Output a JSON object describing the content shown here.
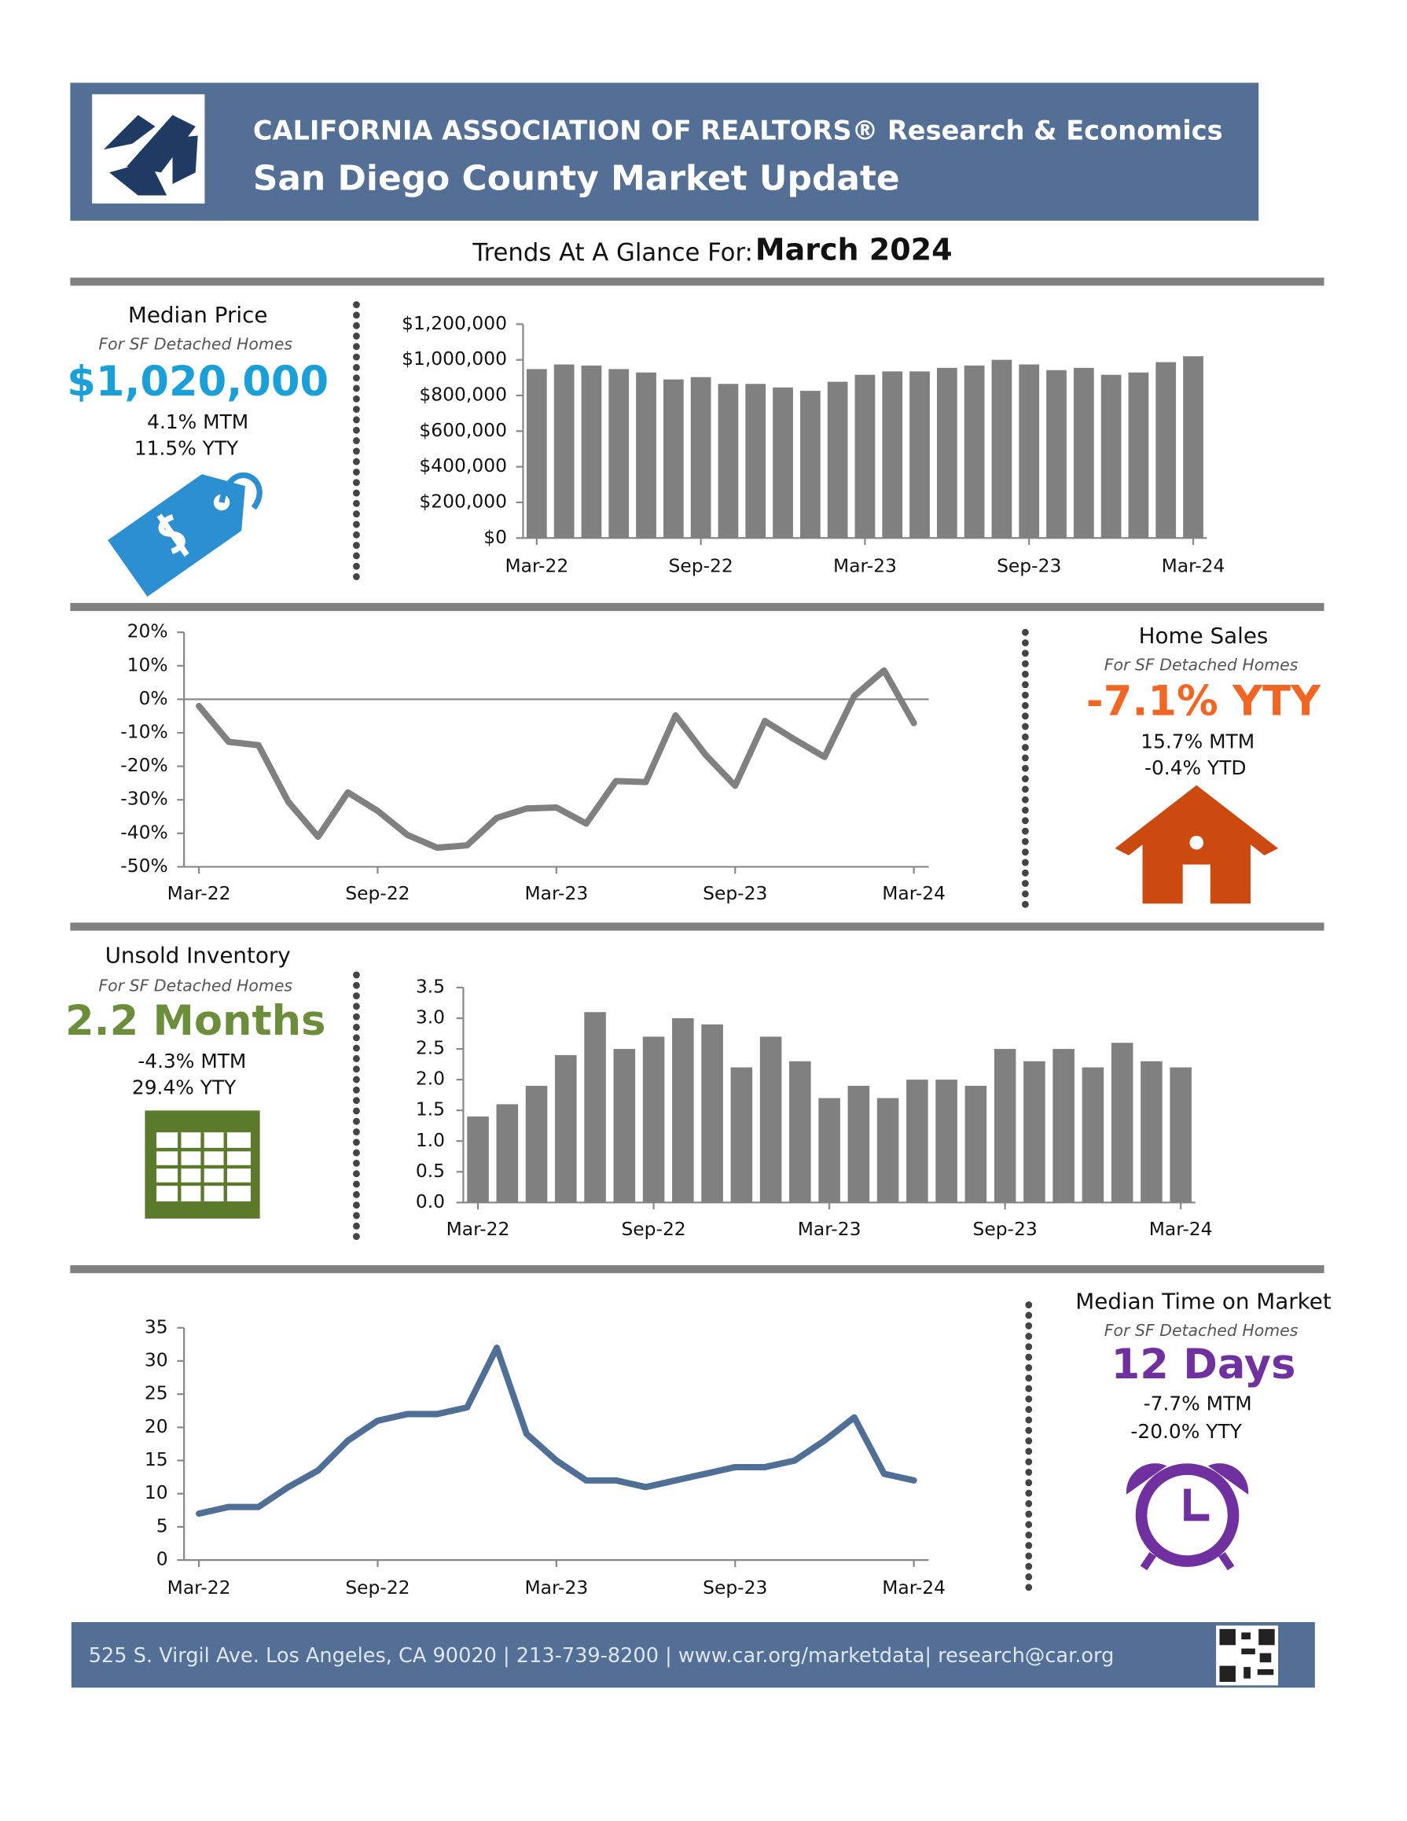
{
  "header": {
    "org": "CALIFORNIA ASSOCIATION OF REALTORS® Research & Economics",
    "title": "San Diego County Market Update"
  },
  "trends": {
    "label": "Trends At A Glance For:",
    "period": "March 2024"
  },
  "panels": [
    {
      "title": "Median Price",
      "subtitle": "For SF Detached Homes",
      "headline": "$1,020,000",
      "lines": [
        "4.1% MTM",
        "11.5% YTY"
      ]
    },
    {
      "title": "Home Sales",
      "subtitle": "For SF Detached Homes",
      "headline": "-7.1% YTY",
      "lines": [
        "15.7% MTM",
        "-0.4% YTD"
      ]
    },
    {
      "title": "Unsold Inventory",
      "subtitle": "For SF Detached Homes",
      "headline": "2.2 Months",
      "lines": [
        "-4.3% MTM",
        "29.4% YTY"
      ]
    },
    {
      "title": "Median Time on Market",
      "subtitle": "For SF Detached Homes",
      "headline": "12 Days",
      "lines": [
        "-7.7% MTM",
        "-20.0% YTY"
      ]
    }
  ],
  "chart_data": [
    {
      "type": "bar",
      "color": "#808080",
      "categories": [
        "Mar-22",
        null,
        null,
        null,
        null,
        null,
        "Sep-22",
        null,
        null,
        null,
        null,
        null,
        "Mar-23",
        null,
        null,
        null,
        null,
        null,
        "Sep-23",
        null,
        null,
        null,
        null,
        null,
        "Mar-24"
      ],
      "values": [
        948000,
        974000,
        968000,
        948000,
        929000,
        890000,
        903000,
        865000,
        865000,
        845000,
        826000,
        877000,
        916000,
        935000,
        935000,
        955000,
        968000,
        1000000,
        974000,
        942000,
        955000,
        916000,
        929000,
        987000,
        1020000
      ],
      "ylim": [
        0,
        1200000
      ],
      "yticks": [
        {
          "value": 0,
          "label": "$0"
        },
        {
          "value": 200000,
          "label": "$200,000"
        },
        {
          "value": 400000,
          "label": "$400,000"
        },
        {
          "value": 600000,
          "label": "$600,000"
        },
        {
          "value": 800000,
          "label": "$800,000"
        },
        {
          "value": 1000000,
          "label": "$1,000,000"
        },
        {
          "value": 1200000,
          "label": "$1,200,000"
        }
      ]
    },
    {
      "type": "line",
      "color": "#808080",
      "categories": [
        "Mar-22",
        null,
        null,
        null,
        null,
        null,
        "Sep-22",
        null,
        null,
        null,
        null,
        null,
        "Mar-23",
        null,
        null,
        null,
        null,
        null,
        "Sep-23",
        null,
        null,
        null,
        null,
        null,
        "Mar-24"
      ],
      "values": [
        -2,
        -12.7,
        -13.7,
        -30.6,
        -41,
        -27.8,
        -33.3,
        -40.5,
        -44.3,
        -43.6,
        -35.4,
        -32.6,
        -32.3,
        -37.1,
        -24.4,
        -24.7,
        -4.8,
        -16.5,
        -25.8,
        -6.5,
        -12,
        -17.2,
        1,
        8.6,
        -7.1
      ],
      "ylim": [
        -50,
        20
      ],
      "yticks": [
        {
          "value": -50,
          "label": "-50%"
        },
        {
          "value": -40,
          "label": "-40%"
        },
        {
          "value": -30,
          "label": "-30%"
        },
        {
          "value": -20,
          "label": "-20%"
        },
        {
          "value": -10,
          "label": "-10%"
        },
        {
          "value": 0,
          "label": "0%"
        },
        {
          "value": 10,
          "label": "10%"
        },
        {
          "value": 20,
          "label": "20%"
        }
      ]
    },
    {
      "type": "bar",
      "color": "#808080",
      "categories": [
        "Mar-22",
        null,
        null,
        null,
        null,
        null,
        "Sep-22",
        null,
        null,
        null,
        null,
        null,
        "Mar-23",
        null,
        null,
        null,
        null,
        null,
        "Sep-23",
        null,
        null,
        null,
        null,
        null,
        "Mar-24"
      ],
      "values": [
        1.4,
        1.6,
        1.9,
        2.4,
        3.1,
        2.5,
        2.7,
        3.0,
        2.9,
        2.2,
        2.7,
        2.3,
        1.7,
        1.9,
        1.7,
        2.0,
        2.0,
        1.9,
        2.5,
        2.3,
        2.5,
        2.2,
        2.6,
        2.3,
        2.2
      ],
      "ylim": [
        0,
        3.5
      ],
      "yticks": [
        {
          "value": 0,
          "label": "0.0"
        },
        0.5,
        {
          "value": 1,
          "label": "1.0"
        },
        1.5,
        {
          "value": 2,
          "label": "2.0"
        },
        2.5,
        {
          "value": 3,
          "label": "3.0"
        },
        3.5
      ]
    },
    {
      "type": "line",
      "color": "#4f6f96",
      "categories": [
        "Mar-22",
        null,
        null,
        null,
        null,
        null,
        "Sep-22",
        null,
        null,
        null,
        null,
        null,
        "Mar-23",
        null,
        null,
        null,
        null,
        null,
        "Sep-23",
        null,
        null,
        null,
        null,
        null,
        "Mar-24"
      ],
      "values": [
        7,
        8,
        8,
        11,
        13.5,
        18,
        21,
        22,
        22,
        23,
        32,
        19,
        15,
        12,
        12,
        11,
        12,
        13,
        14,
        14,
        15,
        18,
        21.5,
        13,
        12
      ],
      "ylim": [
        0,
        35
      ],
      "yticks": [
        0,
        5,
        10,
        15,
        20,
        25,
        30,
        35
      ]
    }
  ],
  "footer": {
    "text": "525 S. Virgil Ave. Los Angeles, CA 90020 | 213-739-8200 | www.car.org/marketdata| research@car.org"
  }
}
